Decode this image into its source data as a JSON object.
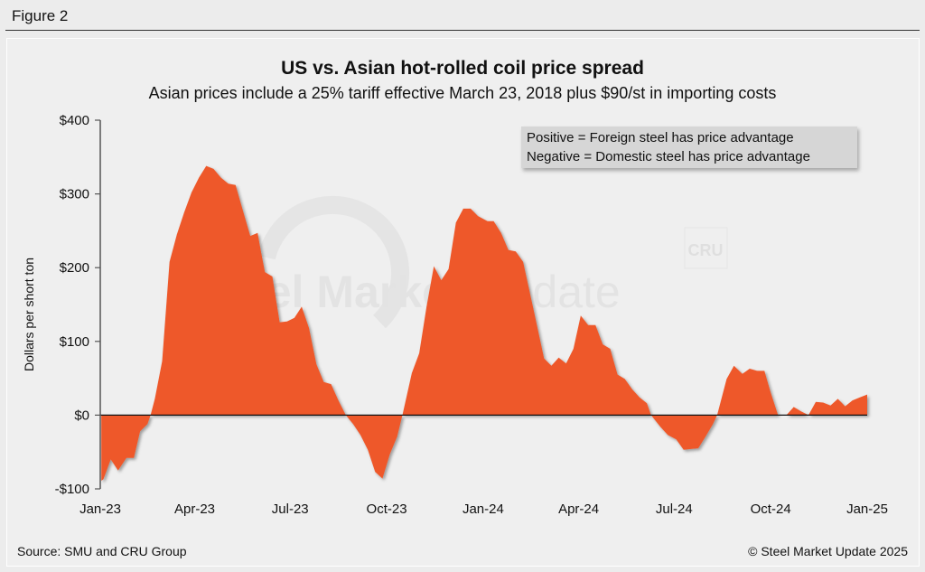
{
  "figure_label": "Figure 2",
  "source": "Source: SMU and CRU Group",
  "copyright": "© Steel Market Update 2025",
  "watermark": {
    "text": "Steel Market Update",
    "logo": "CRU"
  },
  "legend_note": {
    "line1": "Positive = Foreign steel has price advantage",
    "line2": "Negative = Domestic steel has price advantage"
  },
  "colors": {
    "fill": "#ee582a",
    "background": "#efefef",
    "legend_bg": "#d6d6d6"
  },
  "chart_data": {
    "type": "area",
    "title": "US vs. Asian hot-rolled coil price spread",
    "subtitle": "Asian prices include a 25% tariff effective March 23, 2018 plus $90/st in importing costs",
    "xlabel": "",
    "ylabel": "Dollars per short ton",
    "ylim": [
      -100,
      400
    ],
    "yticks": [
      -100,
      0,
      100,
      200,
      300,
      400
    ],
    "ytick_labels": [
      "-$100",
      "$0",
      "$100",
      "$200",
      "$300",
      "$400"
    ],
    "xlim": [
      "2023-01-01",
      "2025-01-01"
    ],
    "xticks": [
      "2023-01-01",
      "2023-04-01",
      "2023-07-01",
      "2023-10-01",
      "2024-01-01",
      "2024-04-01",
      "2024-07-01",
      "2024-10-01",
      "2025-01-01"
    ],
    "xtick_labels": [
      "Jan-23",
      "Apr-23",
      "Jul-23",
      "Oct-23",
      "Jan-24",
      "Apr-24",
      "Jul-24",
      "Oct-24",
      "Jan-25"
    ],
    "grid": false,
    "points": [
      [
        "2023-01-02",
        -89
      ],
      [
        "2023-01-04",
        -87
      ],
      [
        "2023-01-11",
        -60
      ],
      [
        "2023-01-18",
        -75
      ],
      [
        "2023-01-26",
        -58
      ],
      [
        "2023-02-02",
        -58
      ],
      [
        "2023-02-08",
        -22
      ],
      [
        "2023-02-15",
        -12
      ],
      [
        "2023-02-18",
        0
      ],
      [
        "2023-02-22",
        22
      ],
      [
        "2023-03-01",
        73
      ],
      [
        "2023-03-08",
        208
      ],
      [
        "2023-03-15",
        245
      ],
      [
        "2023-03-22",
        275
      ],
      [
        "2023-03-29",
        302
      ],
      [
        "2023-04-05",
        322
      ],
      [
        "2023-04-12",
        338
      ],
      [
        "2023-04-19",
        334
      ],
      [
        "2023-04-26",
        322
      ],
      [
        "2023-05-03",
        314
      ],
      [
        "2023-05-10",
        312
      ],
      [
        "2023-05-17",
        277
      ],
      [
        "2023-05-24",
        243
      ],
      [
        "2023-05-31",
        247
      ],
      [
        "2023-06-03",
        223
      ],
      [
        "2023-06-07",
        194
      ],
      [
        "2023-06-14",
        188
      ],
      [
        "2023-06-21",
        126
      ],
      [
        "2023-06-28",
        127
      ],
      [
        "2023-07-05",
        132
      ],
      [
        "2023-07-12",
        147
      ],
      [
        "2023-07-19",
        118
      ],
      [
        "2023-07-26",
        69
      ],
      [
        "2023-08-02",
        45
      ],
      [
        "2023-08-09",
        42
      ],
      [
        "2023-08-16",
        20
      ],
      [
        "2023-08-23",
        0
      ],
      [
        "2023-08-30",
        -12
      ],
      [
        "2023-09-06",
        -27
      ],
      [
        "2023-09-13",
        -47
      ],
      [
        "2023-09-20",
        -77
      ],
      [
        "2023-09-27",
        -86
      ],
      [
        "2023-10-04",
        -53
      ],
      [
        "2023-10-11",
        -29
      ],
      [
        "2023-10-16",
        0
      ],
      [
        "2023-10-25",
        57
      ],
      [
        "2023-11-01",
        84
      ],
      [
        "2023-11-08",
        147
      ],
      [
        "2023-11-15",
        202
      ],
      [
        "2023-11-22",
        183
      ],
      [
        "2023-11-29",
        198
      ],
      [
        "2023-12-06",
        261
      ],
      [
        "2023-12-13",
        280
      ],
      [
        "2023-12-20",
        280
      ],
      [
        "2023-12-27",
        270
      ],
      [
        "2024-01-05",
        263
      ],
      [
        "2024-01-11",
        263
      ],
      [
        "2024-01-18",
        247
      ],
      [
        "2024-01-25",
        224
      ],
      [
        "2024-02-01",
        222
      ],
      [
        "2024-02-08",
        208
      ],
      [
        "2024-02-18",
        143
      ],
      [
        "2024-02-28",
        77
      ],
      [
        "2024-03-06",
        67
      ],
      [
        "2024-03-13",
        78
      ],
      [
        "2024-03-20",
        70
      ],
      [
        "2024-03-27",
        90
      ],
      [
        "2024-04-03",
        135
      ],
      [
        "2024-04-10",
        122
      ],
      [
        "2024-04-17",
        122
      ],
      [
        "2024-04-24",
        96
      ],
      [
        "2024-05-01",
        90
      ],
      [
        "2024-05-08",
        55
      ],
      [
        "2024-05-15",
        49
      ],
      [
        "2024-05-22",
        35
      ],
      [
        "2024-05-29",
        24
      ],
      [
        "2024-06-05",
        16
      ],
      [
        "2024-06-09",
        0
      ],
      [
        "2024-06-18",
        -16
      ],
      [
        "2024-06-25",
        -27
      ],
      [
        "2024-07-03",
        -33
      ],
      [
        "2024-07-10",
        -47
      ],
      [
        "2024-07-17",
        -46
      ],
      [
        "2024-07-24",
        -45
      ],
      [
        "2024-07-31",
        -29
      ],
      [
        "2024-08-07",
        -12
      ],
      [
        "2024-08-11",
        0
      ],
      [
        "2024-08-20",
        49
      ],
      [
        "2024-08-27",
        67
      ],
      [
        "2024-09-04",
        56
      ],
      [
        "2024-09-11",
        63
      ],
      [
        "2024-09-18",
        60
      ],
      [
        "2024-09-25",
        60
      ],
      [
        "2024-10-01",
        31
      ],
      [
        "2024-10-08",
        0
      ],
      [
        "2024-10-16",
        0
      ],
      [
        "2024-10-23",
        11
      ],
      [
        "2024-10-30",
        5
      ],
      [
        "2024-11-06",
        0
      ],
      [
        "2024-11-13",
        18
      ],
      [
        "2024-11-20",
        17
      ],
      [
        "2024-11-27",
        13
      ],
      [
        "2024-12-04",
        22
      ],
      [
        "2024-12-11",
        12
      ],
      [
        "2024-12-18",
        20
      ],
      [
        "2024-12-25",
        24
      ],
      [
        "2025-01-01",
        28
      ]
    ]
  }
}
